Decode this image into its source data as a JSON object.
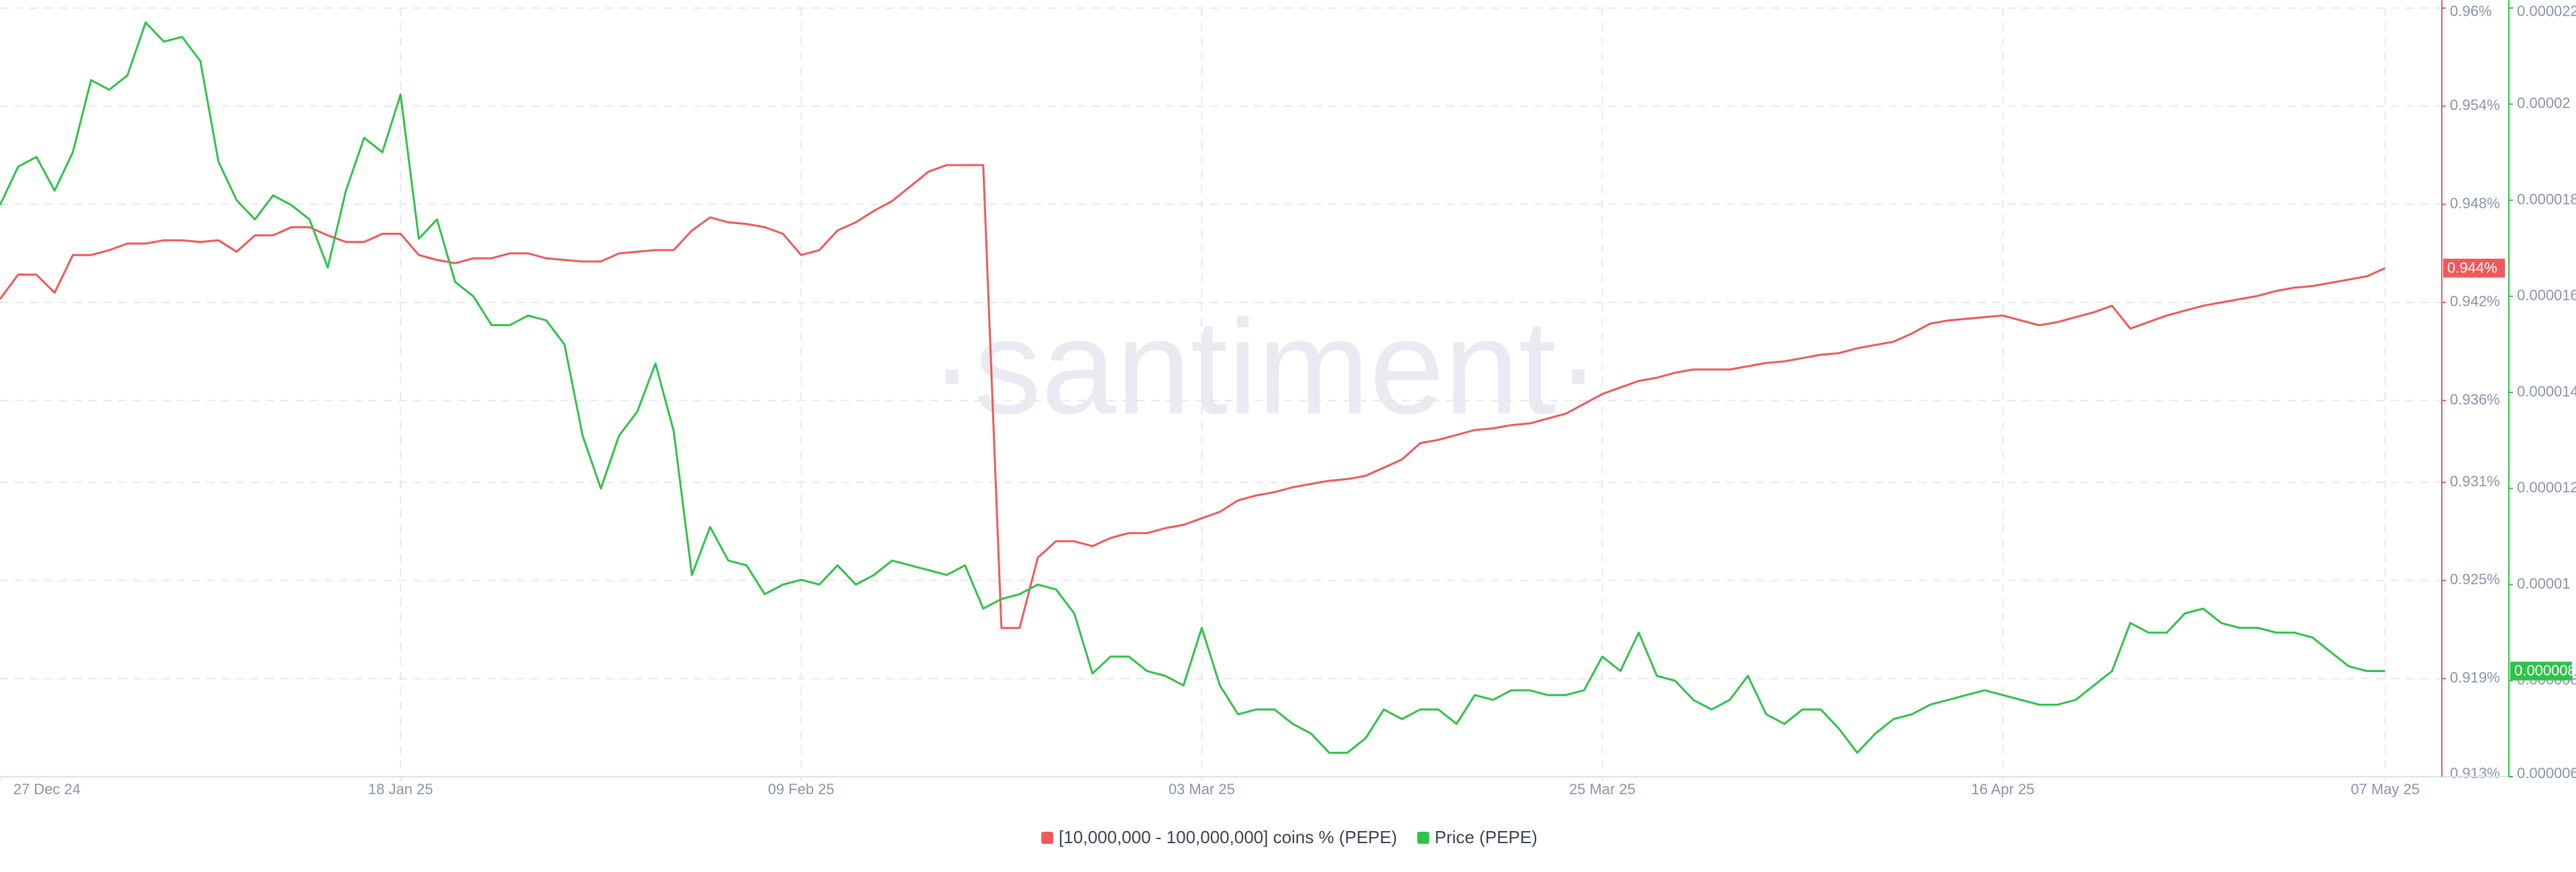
{
  "chart_data": {
    "type": "line",
    "watermark": "·santiment·",
    "grid": true,
    "legend": "bottom",
    "x": [
      "27 Dec 24",
      "28 Dec 24",
      "29 Dec 24",
      "30 Dec 24",
      "31 Dec 24",
      "01 Jan 25",
      "02 Jan 25",
      "03 Jan 25",
      "04 Jan 25",
      "05 Jan 25",
      "06 Jan 25",
      "07 Jan 25",
      "08 Jan 25",
      "09 Jan 25",
      "10 Jan 25",
      "11 Jan 25",
      "12 Jan 25",
      "13 Jan 25",
      "14 Jan 25",
      "15 Jan 25",
      "16 Jan 25",
      "17 Jan 25",
      "18 Jan 25",
      "19 Jan 25",
      "20 Jan 25",
      "21 Jan 25",
      "22 Jan 25",
      "23 Jan 25",
      "24 Jan 25",
      "25 Jan 25",
      "26 Jan 25",
      "27 Jan 25",
      "28 Jan 25",
      "29 Jan 25",
      "30 Jan 25",
      "31 Jan 25",
      "01 Feb 25",
      "02 Feb 25",
      "03 Feb 25",
      "04 Feb 25",
      "05 Feb 25",
      "06 Feb 25",
      "07 Feb 25",
      "08 Feb 25",
      "09 Feb 25",
      "10 Feb 25",
      "11 Feb 25",
      "12 Feb 25",
      "13 Feb 25",
      "14 Feb 25",
      "15 Feb 25",
      "16 Feb 25",
      "17 Feb 25",
      "18 Feb 25",
      "19 Feb 25",
      "20 Feb 25",
      "21 Feb 25",
      "22 Feb 25",
      "23 Feb 25",
      "24 Feb 25",
      "25 Feb 25",
      "26 Feb 25",
      "27 Feb 25",
      "28 Feb 25",
      "01 Mar 25",
      "02 Mar 25",
      "03 Mar 25",
      "04 Mar 25",
      "05 Mar 25",
      "06 Mar 25",
      "07 Mar 25",
      "08 Mar 25",
      "09 Mar 25",
      "10 Mar 25",
      "11 Mar 25",
      "12 Mar 25",
      "13 Mar 25",
      "14 Mar 25",
      "15 Mar 25",
      "16 Mar 25",
      "17 Mar 25",
      "18 Mar 25",
      "19 Mar 25",
      "20 Mar 25",
      "21 Mar 25",
      "22 Mar 25",
      "23 Mar 25",
      "24 Mar 25",
      "25 Mar 25",
      "26 Mar 25",
      "27 Mar 25",
      "28 Mar 25",
      "29 Mar 25",
      "30 Mar 25",
      "31 Mar 25",
      "01 Apr 25",
      "02 Apr 25",
      "03 Apr 25",
      "04 Apr 25",
      "05 Apr 25",
      "06 Apr 25",
      "07 Apr 25",
      "08 Apr 25",
      "09 Apr 25",
      "10 Apr 25",
      "11 Apr 25",
      "12 Apr 25",
      "13 Apr 25",
      "14 Apr 25",
      "15 Apr 25",
      "16 Apr 25",
      "17 Apr 25",
      "18 Apr 25",
      "19 Apr 25",
      "20 Apr 25",
      "21 Apr 25",
      "22 Apr 25",
      "23 Apr 25",
      "24 Apr 25",
      "25 Apr 25",
      "26 Apr 25",
      "27 Apr 25",
      "28 Apr 25",
      "29 Apr 25",
      "30 Apr 25",
      "01 May 25",
      "02 May 25",
      "03 May 25",
      "04 May 25",
      "05 May 25",
      "06 May 25",
      "07 May 25"
    ],
    "xlim": [
      "27 Dec 24",
      "10 May 25"
    ],
    "xticks": [
      "27 Dec 24",
      "18 Jan 25",
      "09 Feb 25",
      "03 Mar 25",
      "25 Mar 25",
      "16 Apr 25",
      "07 May 25"
    ],
    "ylim": [
      0.913,
      0.96
    ],
    "yticks": [
      {
        "value": 0.913,
        "label": "0.913%"
      },
      {
        "value": 0.919,
        "label": "0.919%"
      },
      {
        "value": 0.925,
        "label": "0.925%"
      },
      {
        "value": 0.931,
        "label": "0.931%"
      },
      {
        "value": 0.936,
        "label": "0.936%"
      },
      {
        "value": 0.942,
        "label": "0.942%"
      },
      {
        "value": 0.948,
        "label": "0.948%"
      },
      {
        "value": 0.954,
        "label": "0.954%"
      },
      {
        "value": 0.96,
        "label": "0.96%"
      }
    ],
    "y2lim": [
      6e-06,
      2.2e-05
    ],
    "y2ticks": [
      {
        "value": 6e-06,
        "label": "0.000006"
      },
      {
        "value": 8e-06,
        "label": "0.000008"
      },
      {
        "value": 1e-05,
        "label": "0.00001"
      },
      {
        "value": 1.2e-05,
        "label": "0.000012"
      },
      {
        "value": 1.4e-05,
        "label": "0.000014"
      },
      {
        "value": 1.6e-05,
        "label": "0.000016"
      },
      {
        "value": 1.8e-05,
        "label": "0.000018"
      },
      {
        "value": 2e-05,
        "label": "0.00002"
      },
      {
        "value": 2.2e-05,
        "label": "0.000022"
      }
    ],
    "series": [
      {
        "name": "[10,000,000 - 100,000,000] coins % (PEPE)",
        "color": "#f0585a",
        "axis": "y",
        "current_label": "0.944%",
        "values": [
          0.9422,
          0.9437,
          0.9437,
          0.9426,
          0.9449,
          0.9449,
          0.9452,
          0.9456,
          0.9456,
          0.9458,
          0.9458,
          0.9457,
          0.9458,
          0.9451,
          0.9461,
          0.9461,
          0.9466,
          0.9466,
          0.9461,
          0.9457,
          0.9457,
          0.9462,
          0.9462,
          0.9449,
          0.9446,
          0.9444,
          0.9447,
          0.9447,
          0.945,
          0.945,
          0.9447,
          0.9446,
          0.9445,
          0.9445,
          0.945,
          0.9451,
          0.9452,
          0.9452,
          0.9464,
          0.9472,
          0.9469,
          0.9468,
          0.9466,
          0.9462,
          0.9449,
          0.9452,
          0.9464,
          0.9469,
          0.9476,
          0.9482,
          0.9491,
          0.95,
          0.9504,
          0.9504,
          0.9504,
          0.9221,
          0.9221,
          0.9264,
          0.9274,
          0.9274,
          0.9271,
          0.9276,
          0.9279,
          0.9279,
          0.9282,
          0.9284,
          0.9288,
          0.9292,
          0.9299,
          0.9302,
          0.9304,
          0.9307,
          0.9309,
          0.9311,
          0.9312,
          0.9314,
          0.9319,
          0.9324,
          0.9334,
          0.9336,
          0.9339,
          0.9342,
          0.9343,
          0.9345,
          0.9346,
          0.9349,
          0.9352,
          0.9358,
          0.9364,
          0.9368,
          0.9372,
          0.9374,
          0.9377,
          0.9379,
          0.9379,
          0.9379,
          0.9381,
          0.9383,
          0.9384,
          0.9386,
          0.9388,
          0.9389,
          0.9392,
          0.9394,
          0.9396,
          0.9401,
          0.9407,
          0.9409,
          0.941,
          0.9411,
          0.9412,
          0.9409,
          0.9406,
          0.9408,
          0.9411,
          0.9414,
          0.9418,
          0.9404,
          0.9408,
          0.9412,
          0.9415,
          0.9418,
          0.942,
          0.9422,
          0.9424,
          0.9427,
          0.9429,
          0.943,
          0.9432,
          0.9434,
          0.9436,
          0.9441
        ]
      },
      {
        "name": "Price (PEPE)",
        "color": "#2fc24a",
        "axis": "y2",
        "current_label": "0.000008",
        "values": [
          1.79e-05,
          1.87e-05,
          1.89e-05,
          1.82e-05,
          1.9e-05,
          2.05e-05,
          2.03e-05,
          2.06e-05,
          2.17e-05,
          2.13e-05,
          2.14e-05,
          2.09e-05,
          1.88e-05,
          1.8e-05,
          1.76e-05,
          1.81e-05,
          1.79e-05,
          1.76e-05,
          1.66e-05,
          1.82e-05,
          1.93e-05,
          1.9e-05,
          2.02e-05,
          1.72e-05,
          1.76e-05,
          1.63e-05,
          1.6e-05,
          1.54e-05,
          1.54e-05,
          1.56e-05,
          1.55e-05,
          1.5e-05,
          1.31e-05,
          1.2e-05,
          1.31e-05,
          1.36e-05,
          1.46e-05,
          1.32e-05,
          1.02e-05,
          1.12e-05,
          1.05e-05,
          1.04e-05,
          9.8e-06,
          1e-05,
          1.01e-05,
          1e-05,
          1.04e-05,
          1e-05,
          1.02e-05,
          1.05e-05,
          1.04e-05,
          1.03e-05,
          1.02e-05,
          1.04e-05,
          9.5e-06,
          9.7e-06,
          9.8e-06,
          1e-05,
          9.9e-06,
          9.4e-06,
          8.15e-06,
          8.5e-06,
          8.5e-06,
          8.2e-06,
          8.1e-06,
          7.9e-06,
          9.1e-06,
          7.9e-06,
          7.3e-06,
          7.4e-06,
          7.4e-06,
          7.1e-06,
          6.9e-06,
          6.5e-06,
          6.5e-06,
          6.8e-06,
          7.4e-06,
          7.2e-06,
          7.4e-06,
          7.4e-06,
          7.1e-06,
          7.7e-06,
          7.6e-06,
          7.8e-06,
          7.8e-06,
          7.7e-06,
          7.7e-06,
          7.8e-06,
          8.5e-06,
          8.2e-06,
          9e-06,
          8.1e-06,
          8e-06,
          7.6e-06,
          7.4e-06,
          7.6e-06,
          8.1e-06,
          7.3e-06,
          7.1e-06,
          7.4e-06,
          7.4e-06,
          7e-06,
          6.5e-06,
          6.9e-06,
          7.2e-06,
          7.3e-06,
          7.5e-06,
          7.6e-06,
          7.7e-06,
          7.8e-06,
          7.7e-06,
          7.6e-06,
          7.5e-06,
          7.5e-06,
          7.6e-06,
          7.9e-06,
          8.2e-06,
          9.2e-06,
          9e-06,
          9e-06,
          9.4e-06,
          9.5e-06,
          9.2e-06,
          9.1e-06,
          9.1e-06,
          9e-06,
          9e-06,
          8.9e-06,
          8.6e-06,
          8.3e-06,
          8.2e-06,
          8.2e-06
        ]
      }
    ]
  }
}
